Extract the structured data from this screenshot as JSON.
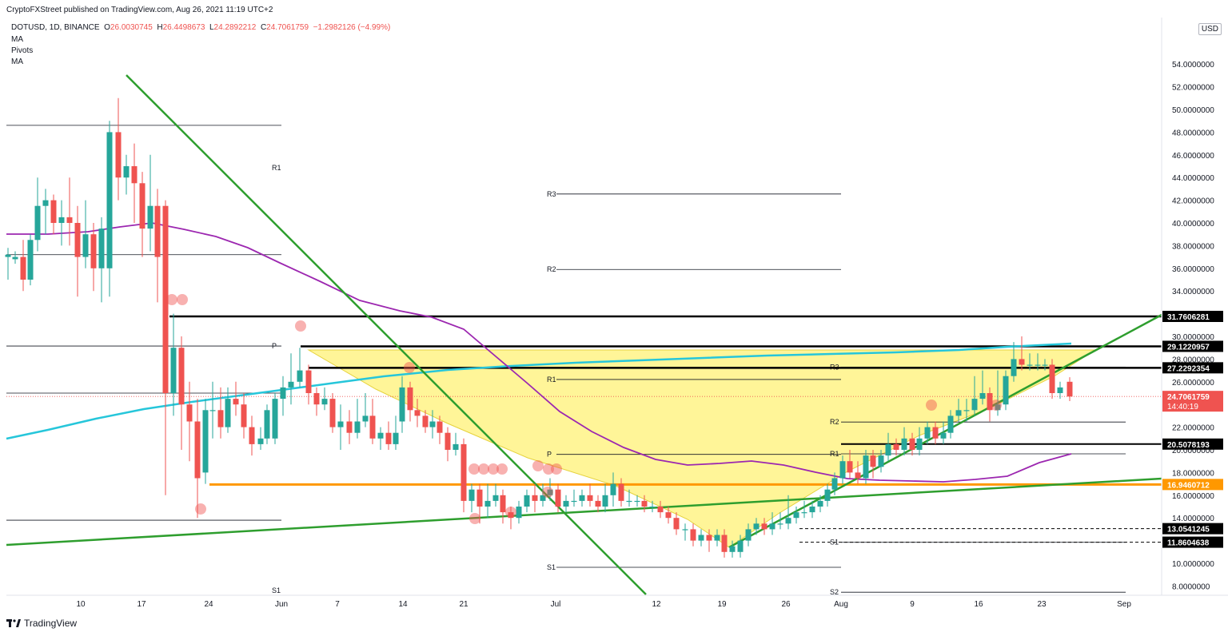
{
  "header": {
    "publisher": "CryptoFXStreet published on TradingView.com, Aug 26, 2021 11:19 UTC+2",
    "symbol": "DOTUSD, 1D, BINANCE",
    "open_label": "O",
    "open": "26.0030745",
    "high_label": "H",
    "high": "26.4498673",
    "low_label": "L",
    "low": "24.2892212",
    "close_label": "C",
    "close": "24.7061759",
    "change": "−1.2982126 (−4.99%)",
    "indicators": [
      "MA",
      "Pivots",
      "MA"
    ]
  },
  "currency": "USD",
  "brand": "TradingView",
  "chart_data": {
    "type": "candlestick",
    "symbol": "DOTUSD",
    "interval": "1D",
    "exchange": "BINANCE",
    "ylim": [
      6,
      55
    ],
    "y_ticks": [
      "8.0000000",
      "10.0000000",
      "12.0000000",
      "14.0000000",
      "16.0000000",
      "18.0000000",
      "20.0000000",
      "22.0000000",
      "24.0000000",
      "26.0000000",
      "28.0000000",
      "30.0000000",
      "32.0000000",
      "34.0000000",
      "36.0000000",
      "38.0000000",
      "40.0000000",
      "42.0000000",
      "44.0000000",
      "46.0000000",
      "48.0000000",
      "50.0000000",
      "52.0000000",
      "54.0000000"
    ],
    "x_ticks": [
      "10",
      "17",
      "24",
      "Jun",
      "7",
      "14",
      "21",
      "Jul",
      "12",
      "19",
      "26",
      "Aug",
      "9",
      "16",
      "23",
      "Sep"
    ],
    "price_badges": [
      {
        "label": "31.7606281",
        "value": 31.7606281,
        "color": "#000000"
      },
      {
        "label": "29.1220957",
        "value": 29.1220957,
        "color": "#000000"
      },
      {
        "label": "27.2292354",
        "value": 27.2292354,
        "color": "#000000"
      },
      {
        "label": "24.7061759",
        "value": 24.7061759,
        "color": "#ef5350",
        "countdown": "14:40:19"
      },
      {
        "label": "20.5078193",
        "value": 20.5078193,
        "color": "#000000"
      },
      {
        "label": "16.9460712",
        "value": 16.9460712,
        "color": "#ff9800"
      },
      {
        "label": "13.0541245",
        "value": 13.0541245,
        "color": "#000000"
      },
      {
        "label": "11.8604638",
        "value": 11.8604638,
        "color": "#000000"
      }
    ],
    "pivot_levels": [
      {
        "label": "R1",
        "value": 44.85,
        "period": 1
      },
      {
        "label": "P",
        "value": 29.15,
        "period": 1
      },
      {
        "label": "S1",
        "value": 7.6,
        "period": 1
      },
      {
        "label": "R3",
        "value": 42.55,
        "period": 2
      },
      {
        "label": "R2",
        "value": 35.9,
        "period": 2
      },
      {
        "label": "R1",
        "value": 26.2,
        "period": 2
      },
      {
        "label": "P",
        "value": 19.6,
        "period": 2
      },
      {
        "label": "S1",
        "value": 9.65,
        "period": 2
      },
      {
        "label": "R3",
        "value": 27.3,
        "period": 3
      },
      {
        "label": "R2",
        "value": 22.45,
        "period": 3
      },
      {
        "label": "R1",
        "value": 19.65,
        "period": 3
      },
      {
        "label": "S1",
        "value": 11.85,
        "period": 3
      },
      {
        "label": "S2",
        "value": 7.45,
        "period": 3
      }
    ],
    "colors": {
      "up": "#26a69a",
      "down": "#ef5350",
      "ma_fast": "#9c27b0",
      "ma_slow": "#26c6da",
      "trend": "#2e9e2e",
      "support": "#ff9800",
      "pattern": "#fff176"
    }
  }
}
